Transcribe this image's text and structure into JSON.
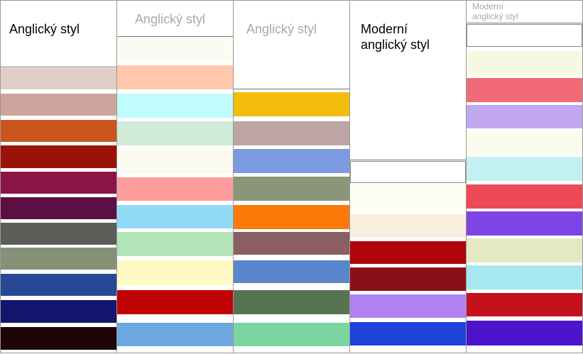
{
  "columns": [
    {
      "title_lines": [
        "Anglický styl"
      ],
      "title_color": "#000000",
      "title_size": 18,
      "swatches": [
        "#dfcdc6",
        "#cda59c",
        "#c9561f",
        "#9a1309",
        "#8a1446",
        "#5c0f42",
        "#5b5d58",
        "#849177",
        "#274895",
        "#14146e",
        "#1e0508"
      ]
    },
    {
      "title_lines": [
        "Anglický styl"
      ],
      "title_color": "#a8a8a8",
      "title_size": 18,
      "swatches": [
        "#fbfbf3",
        "#ffc8ad",
        "#bffcfb",
        "#d0ebd8",
        "#fafaf1",
        "#ff9d9e",
        "#92dbf7",
        "#b3e4b8",
        "#fff9c6",
        "#c10204",
        "#6ca7e0"
      ]
    },
    {
      "title_lines": [
        "Anglický styl"
      ],
      "title_color": "#a8a8a8",
      "title_size": 18,
      "swatches": [
        "#f2bd0d",
        "#bea4a4",
        "#7c9be1",
        "#8a9777",
        "#fb7a09",
        "#8b5e60",
        "#5c86cb",
        "#577352",
        "#7cd4a0"
      ]
    },
    {
      "title_lines": [
        "Moderní",
        "anglický styl"
      ],
      "title_color": "#000000",
      "title_size": 18,
      "swatches": [
        "#ffffff",
        "#fbfdf0",
        "#faeedf",
        "#b0050c",
        "#8a1017",
        "#b082f0",
        "#1d43d8"
      ]
    },
    {
      "title_lines": [
        "Moderní",
        "anglický styl"
      ],
      "title_color": "#a8a8a8",
      "title_size": 12,
      "swatches": [
        "#ffffff",
        "#f5f9e2",
        "#f26a75",
        "#c0a7ef",
        "#fbfcee",
        "#c3f1f1",
        "#ec4a56",
        "#7d45e4",
        "#e5e9c2",
        "#a6e8ef",
        "#c4111d",
        "#4d14cc"
      ]
    }
  ]
}
